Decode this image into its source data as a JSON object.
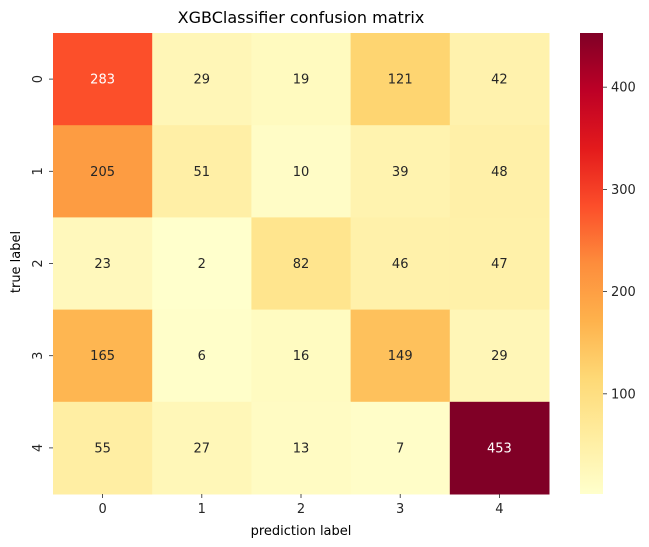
{
  "chart_data": {
    "type": "heatmap",
    "title": "XGBClassifier confusion matrix",
    "xlabel": "prediction label",
    "ylabel": "true label",
    "x_categories": [
      "0",
      "1",
      "2",
      "3",
      "4"
    ],
    "y_categories": [
      "0",
      "1",
      "2",
      "3",
      "4"
    ],
    "values": [
      [
        283,
        29,
        19,
        121,
        42
      ],
      [
        205,
        51,
        10,
        39,
        48
      ],
      [
        23,
        2,
        82,
        46,
        47
      ],
      [
        165,
        6,
        16,
        149,
        29
      ],
      [
        55,
        27,
        13,
        7,
        453
      ]
    ],
    "colormap": "YlOrRd",
    "value_range": [
      2,
      453
    ],
    "colorbar_ticks": [
      "100",
      "200",
      "300",
      "400"
    ]
  }
}
